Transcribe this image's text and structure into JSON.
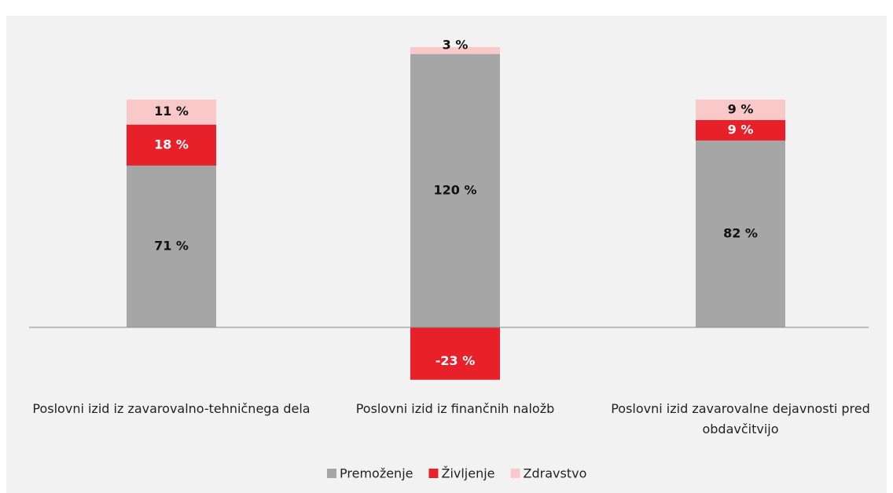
{
  "chart_data": {
    "type": "stacked_bar",
    "categories": [
      "Poslovni izid iz zavarovalno-tehničnega dela",
      "Poslovni izid iz finančnih naložb",
      "Poslovni izid zavarovalne dejavnosti pred obdavčitvijo"
    ],
    "series": [
      {
        "name": "Premoženje",
        "color": "#a6a6a6",
        "values": [
          71,
          120,
          82
        ],
        "value_labels": [
          "71 %",
          "120 %",
          "82 %"
        ]
      },
      {
        "name": "Življenje",
        "color": "#e8202a",
        "values": [
          18,
          -23,
          9
        ],
        "value_labels": [
          "18 %",
          "-23 %",
          "9 %"
        ]
      },
      {
        "name": "Zdravstvo",
        "color": "#f9c9c9",
        "values": [
          11,
          3,
          9
        ],
        "value_labels": [
          "11 %",
          "3 %",
          "9 %"
        ]
      }
    ],
    "legend": "bottom"
  }
}
